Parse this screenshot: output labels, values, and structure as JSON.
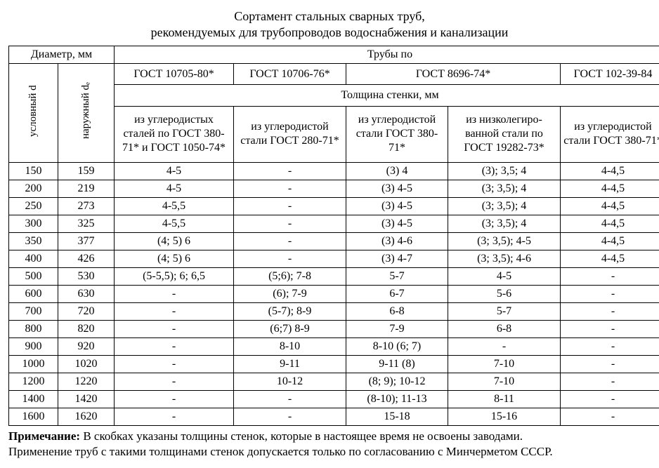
{
  "title_line1": "Сортамент стальных сварных труб,",
  "title_line2": "рекомендуемых для трубопроводов водоснабжения и канализации",
  "head": {
    "diam_group": "Диаметр, мм",
    "pipes_group": "Трубы по",
    "d_uslov": "условный d",
    "d_naruzh": "наружный dₑ",
    "gost1": "ГОСТ 10705-80*",
    "gost2": "ГОСТ 10706-76*",
    "gost3": "ГОСТ 8696-74*",
    "gost4": "ГОСТ 102-39-84",
    "thickness": "Толщина стенки, мм",
    "col1": "из углеродистых сталей по ГОСТ 380-71* и ГОСТ 1050-74*",
    "col2": "из углеродистой стали ГОСТ 280-71*",
    "col3": "из углеродистой стали ГОСТ 380-71*",
    "col4": "из низколегиро-ванной стали по ГОСТ 19282-73*",
    "col5": "из углеродистой стали ГОСТ 380-71*"
  },
  "rows": [
    {
      "d": "150",
      "de": "159",
      "c1": "4-5",
      "c2": "-",
      "c3": "(3) 4",
      "c4": "(3); 3,5; 4",
      "c5": "4-4,5"
    },
    {
      "d": "200",
      "de": "219",
      "c1": "4-5",
      "c2": "-",
      "c3": "(3) 4-5",
      "c4": "(3; 3,5); 4",
      "c5": "4-4,5"
    },
    {
      "d": "250",
      "de": "273",
      "c1": "4-5,5",
      "c2": "-",
      "c3": "(3) 4-5",
      "c4": "(3; 3,5); 4",
      "c5": "4-4,5"
    },
    {
      "d": "300",
      "de": "325",
      "c1": "4-5,5",
      "c2": "-",
      "c3": "(3) 4-5",
      "c4": "(3; 3,5); 4",
      "c5": "4-4,5"
    },
    {
      "d": "350",
      "de": "377",
      "c1": "(4; 5) 6",
      "c2": "-",
      "c3": "(3) 4-6",
      "c4": "(3; 3,5); 4-5",
      "c5": "4-4,5"
    },
    {
      "d": "400",
      "de": "426",
      "c1": "(4; 5) 6",
      "c2": "-",
      "c3": "(3) 4-7",
      "c4": "(3; 3,5); 4-6",
      "c5": "4-4,5"
    },
    {
      "d": "500",
      "de": "530",
      "c1": "(5-5,5); 6; 6,5",
      "c2": "(5;6); 7-8",
      "c3": "5-7",
      "c4": "4-5",
      "c5": "-"
    },
    {
      "d": "600",
      "de": "630",
      "c1": "-",
      "c2": "(6); 7-9",
      "c3": "6-7",
      "c4": "5-6",
      "c5": "-"
    },
    {
      "d": "700",
      "de": "720",
      "c1": "-",
      "c2": "(5-7); 8-9",
      "c3": "6-8",
      "c4": "5-7",
      "c5": "-"
    },
    {
      "d": "800",
      "de": "820",
      "c1": "-",
      "c2": "(6;7) 8-9",
      "c3": "7-9",
      "c4": "6-8",
      "c5": "-"
    },
    {
      "d": "900",
      "de": "920",
      "c1": "-",
      "c2": "8-10",
      "c3": "8-10 (6; 7)",
      "c4": "-",
      "c5": "-"
    },
    {
      "d": "1000",
      "de": "1020",
      "c1": "-",
      "c2": "9-11",
      "c3": "9-11 (8)",
      "c4": "7-10",
      "c5": "-"
    },
    {
      "d": "1200",
      "de": "1220",
      "c1": "-",
      "c2": "10-12",
      "c3": "(8; 9); 10-12",
      "c4": "7-10",
      "c5": "-"
    },
    {
      "d": "1400",
      "de": "1420",
      "c1": "-",
      "c2": "-",
      "c3": "(8-10); 11-13",
      "c4": "8-11",
      "c5": "-"
    },
    {
      "d": "1600",
      "de": "1620",
      "c1": "-",
      "c2": "-",
      "c3": "15-18",
      "c4": "15-16",
      "c5": "-"
    }
  ],
  "note_label": "Примечание:",
  "note_line1": " В скобках указаны толщины стенок, которые в настоящее время не освоены заводами.",
  "note_line2": "Применение труб с такими толщинами стенок допускается только по согласованию с Минчерметом СССР."
}
